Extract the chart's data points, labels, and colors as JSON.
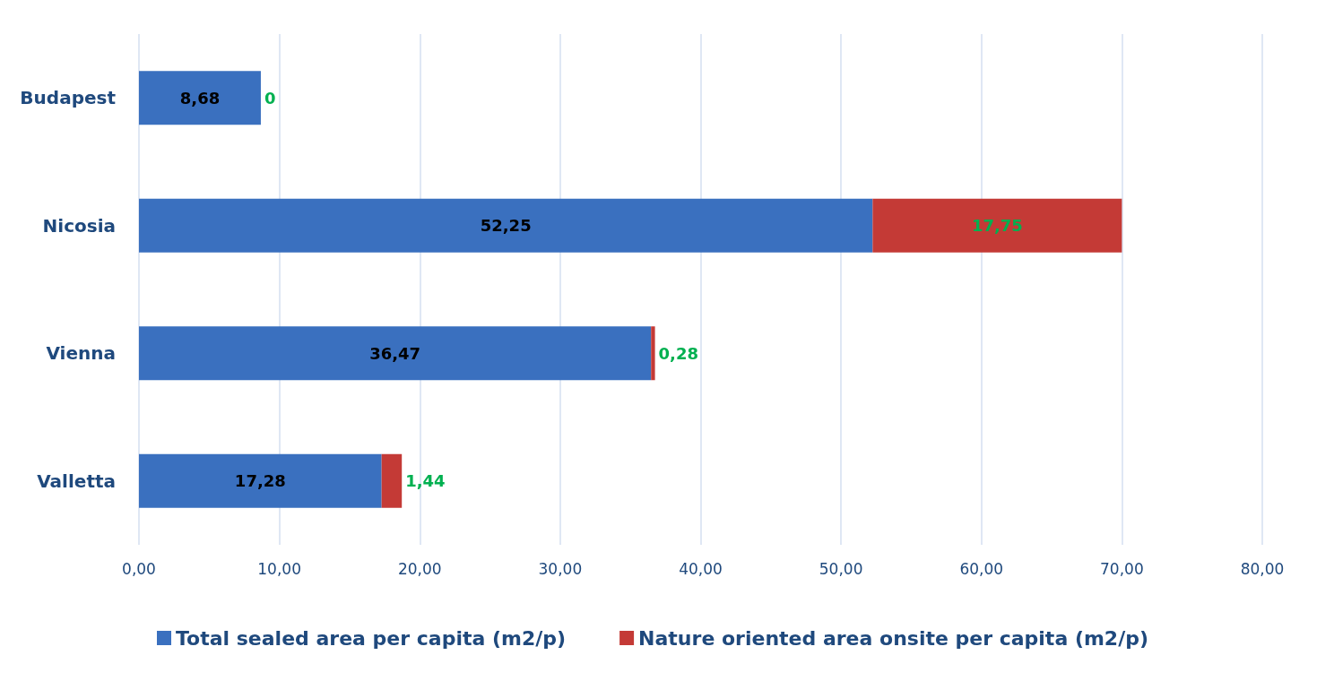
{
  "chart_data": {
    "type": "bar",
    "orientation": "horizontal",
    "stacked": true,
    "categories": [
      "Budapest",
      "Nicosia",
      "Vienna",
      "Valletta"
    ],
    "series": [
      {
        "name": "Total sealed area per capita (m2/p)",
        "color": "#3a70bf",
        "values": [
          8.68,
          52.25,
          36.47,
          17.28
        ],
        "value_labels": [
          "8,68",
          "52,25",
          "36,47",
          "17,28"
        ]
      },
      {
        "name": "Nature oriented area onsite per capita (m2/p)",
        "color": "#c43a36",
        "values": [
          0,
          17.75,
          0.28,
          1.44
        ],
        "value_labels": [
          "0",
          "17,75",
          "0,28",
          "1,44"
        ]
      }
    ],
    "xlim": [
      0,
      80
    ],
    "xticks": [
      {
        "value": 0,
        "label": "0,00"
      },
      {
        "value": 10,
        "label": "10,00"
      },
      {
        "value": 20,
        "label": "20,00"
      },
      {
        "value": 30,
        "label": "30,00"
      },
      {
        "value": 40,
        "label": "40,00"
      },
      {
        "value": 50,
        "label": "50,00"
      },
      {
        "value": 60,
        "label": "60,00"
      },
      {
        "value": 70,
        "label": "70,00"
      },
      {
        "value": 80,
        "label": "80,00"
      }
    ],
    "grid": "x",
    "legend": "bottom"
  }
}
